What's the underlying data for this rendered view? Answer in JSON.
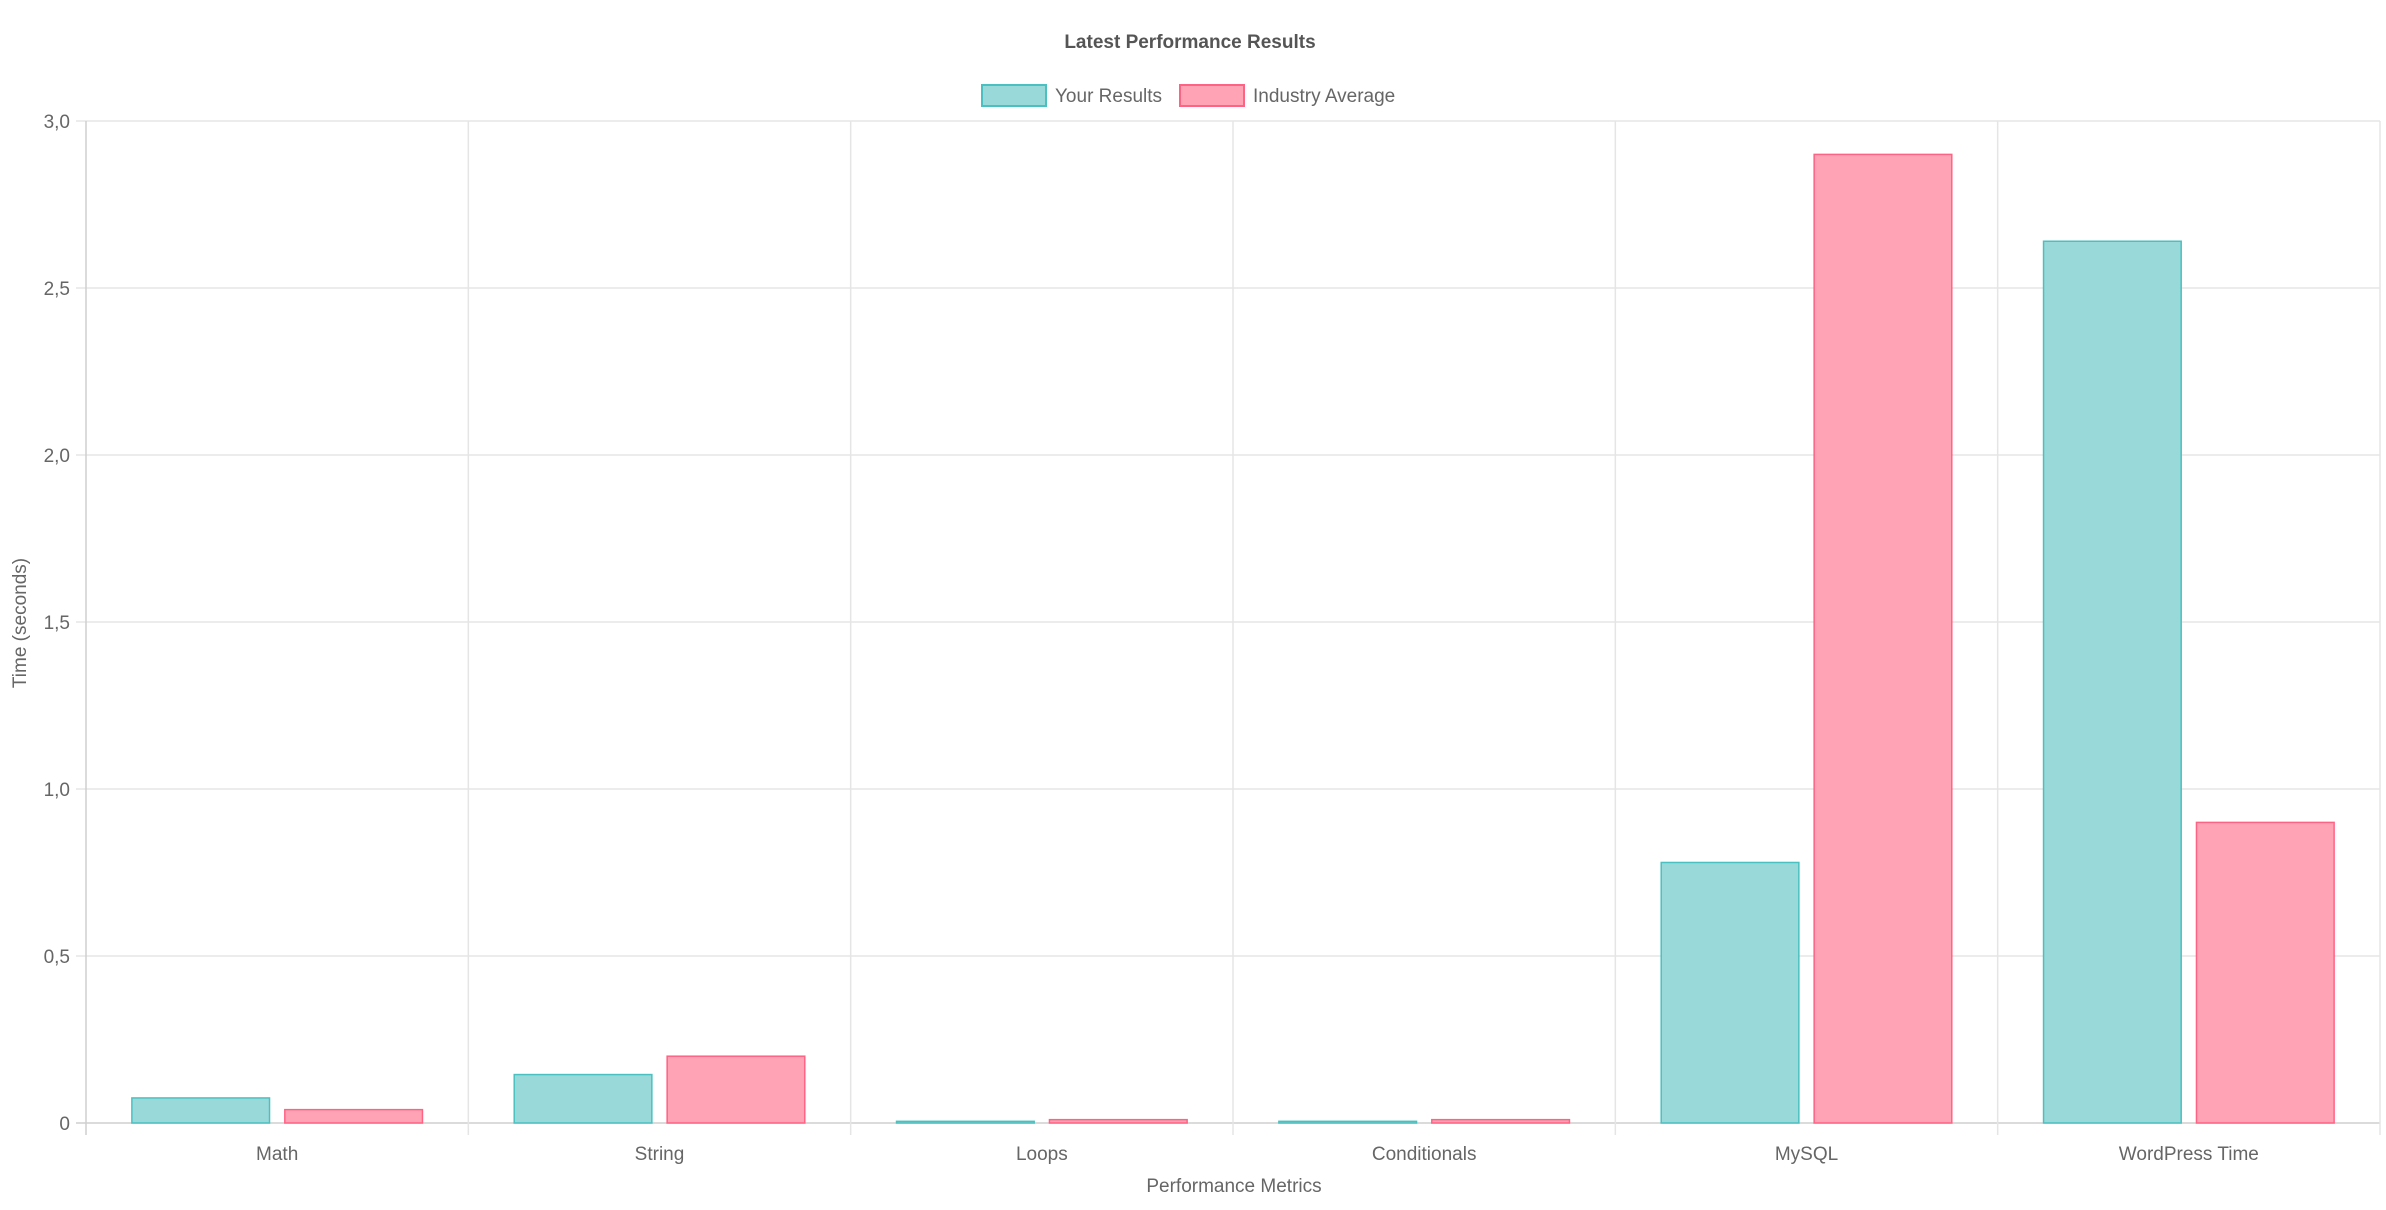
{
  "chart_data": {
    "type": "bar",
    "title": "Latest Performance Results",
    "xlabel": "Performance Metrics",
    "ylabel": "Time (seconds)",
    "ylim": [
      0,
      3
    ],
    "yticks": [
      "0",
      "0,5",
      "1,0",
      "1,5",
      "2,0",
      "2,5",
      "3,0"
    ],
    "grid": true,
    "legend_position": "top",
    "categories": [
      "Math",
      "String",
      "Loops",
      "Conditionals",
      "MySQL",
      "WordPress Time"
    ],
    "series": [
      {
        "name": "Your Results",
        "values": [
          0.075,
          0.145,
          0.005,
          0.005,
          0.78,
          2.64
        ],
        "fill": "#9ad9d9",
        "stroke": "#4bc0c0"
      },
      {
        "name": "Industry Average",
        "values": [
          0.04,
          0.2,
          0.01,
          0.01,
          2.9,
          0.9
        ],
        "fill": "#ffa3b5",
        "stroke": "#ff6384"
      }
    ]
  }
}
